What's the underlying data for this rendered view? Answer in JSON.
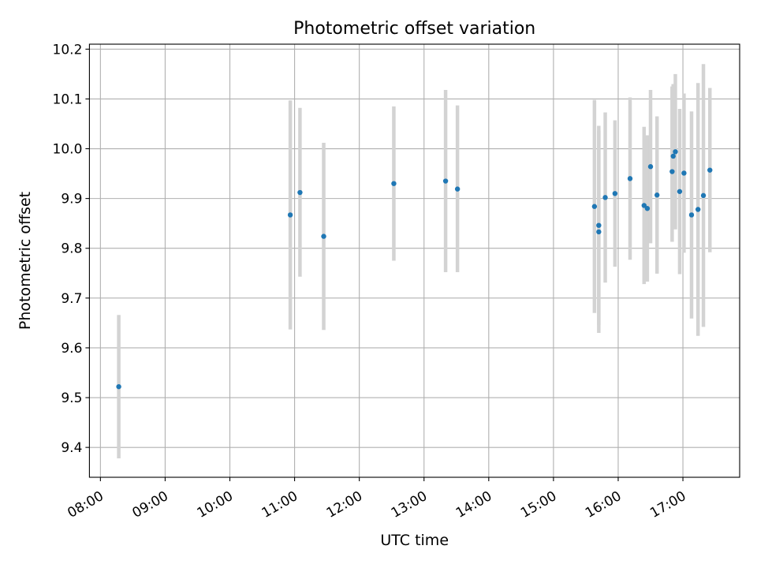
{
  "chart_data": {
    "type": "scatter",
    "title": "Photometric offset variation",
    "xlabel": "UTC time",
    "ylabel": "Photometric offset",
    "x_tick_labels": [
      "08:00",
      "09:00",
      "10:00",
      "11:00",
      "12:00",
      "13:00",
      "14:00",
      "15:00",
      "16:00",
      "17:00"
    ],
    "y_tick_labels": [
      "9.4",
      "9.5",
      "9.6",
      "9.7",
      "9.8",
      "9.9",
      "10.0",
      "10.1",
      "10.2"
    ],
    "x_ticks_minutes": [
      480,
      540,
      600,
      660,
      720,
      780,
      840,
      900,
      960,
      1020
    ],
    "y_ticks": [
      9.4,
      9.5,
      9.6,
      9.7,
      9.8,
      9.9,
      10.0,
      10.1,
      10.2
    ],
    "xlim_minutes": [
      469.8,
      1072.6
    ],
    "ylim": [
      9.34,
      10.21
    ],
    "grid": true,
    "point_color": "#1f77b4",
    "errorbar_color": "#d3d3d3",
    "points": [
      {
        "time": "08:17",
        "y": 9.522,
        "low": 9.378,
        "high": 9.666
      },
      {
        "time": "10:56",
        "y": 9.867,
        "low": 9.637,
        "high": 10.097
      },
      {
        "time": "11:05",
        "y": 9.912,
        "low": 9.743,
        "high": 10.082
      },
      {
        "time": "11:27",
        "y": 9.824,
        "low": 9.636,
        "high": 10.012
      },
      {
        "time": "12:32",
        "y": 9.93,
        "low": 9.775,
        "high": 10.085
      },
      {
        "time": "13:20",
        "y": 9.935,
        "low": 9.752,
        "high": 10.118
      },
      {
        "time": "13:31",
        "y": 9.919,
        "low": 9.752,
        "high": 10.087
      },
      {
        "time": "15:38",
        "y": 9.884,
        "low": 9.67,
        "high": 10.098
      },
      {
        "time": "15:42",
        "y": 9.846,
        "low": 9.646,
        "high": 10.046
      },
      {
        "time": "15:42",
        "y": 9.833,
        "low": 9.63,
        "high": 10.036
      },
      {
        "time": "15:48",
        "y": 9.902,
        "low": 9.731,
        "high": 10.073
      },
      {
        "time": "15:57",
        "y": 9.91,
        "low": 9.763,
        "high": 10.057
      },
      {
        "time": "16:11",
        "y": 9.94,
        "low": 9.777,
        "high": 10.103
      },
      {
        "time": "16:24",
        "y": 9.886,
        "low": 9.728,
        "high": 10.044
      },
      {
        "time": "16:27",
        "y": 9.88,
        "low": 9.733,
        "high": 10.027
      },
      {
        "time": "16:30",
        "y": 9.964,
        "low": 9.81,
        "high": 10.118
      },
      {
        "time": "16:36",
        "y": 9.907,
        "low": 9.749,
        "high": 10.065
      },
      {
        "time": "16:50",
        "y": 9.954,
        "low": 9.813,
        "high": 10.125
      },
      {
        "time": "16:51",
        "y": 9.985,
        "low": 9.84,
        "high": 10.13
      },
      {
        "time": "16:53",
        "y": 9.994,
        "low": 9.838,
        "high": 10.15
      },
      {
        "time": "16:57",
        "y": 9.914,
        "low": 9.748,
        "high": 10.08
      },
      {
        "time": "17:01",
        "y": 9.951,
        "low": 9.791,
        "high": 10.111
      },
      {
        "time": "17:08",
        "y": 9.867,
        "low": 9.659,
        "high": 10.075
      },
      {
        "time": "17:14",
        "y": 9.878,
        "low": 9.624,
        "high": 10.132
      },
      {
        "time": "17:19",
        "y": 9.906,
        "low": 9.642,
        "high": 10.17
      },
      {
        "time": "17:25",
        "y": 9.957,
        "low": 9.792,
        "high": 10.122
      }
    ]
  }
}
